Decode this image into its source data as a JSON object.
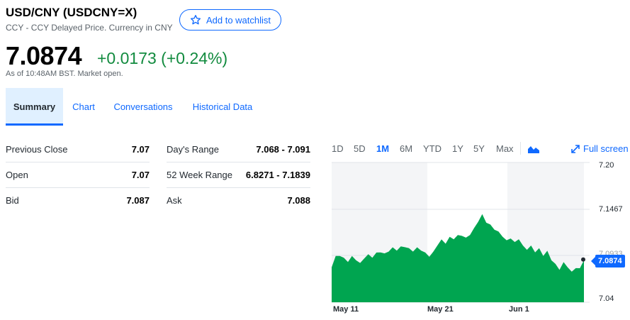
{
  "header": {
    "title": "USD/CNY (USDCNY=X)",
    "subtitle": "CCY - CCY Delayed Price. Currency in CNY",
    "watchlist_label": "Add to watchlist"
  },
  "quote": {
    "price": "7.0874",
    "change": "+0.0173 (+0.24%)",
    "as_of": "As of 10:48AM BST. Market open."
  },
  "tabs": [
    {
      "label": "Summary",
      "active": true
    },
    {
      "label": "Chart"
    },
    {
      "label": "Conversations"
    },
    {
      "label": "Historical Data"
    }
  ],
  "stats_left": [
    {
      "label": "Previous Close",
      "value": "7.07"
    },
    {
      "label": "Open",
      "value": "7.07"
    },
    {
      "label": "Bid",
      "value": "7.087"
    }
  ],
  "stats_right": [
    {
      "label": "Day's Range",
      "value": "7.068 - 7.091"
    },
    {
      "label": "52 Week Range",
      "value": "6.8271 - 7.1839"
    },
    {
      "label": "Ask",
      "value": "7.088"
    }
  ],
  "chart_controls": {
    "ranges": [
      "1D",
      "5D",
      "1M",
      "6M",
      "YTD",
      "1Y",
      "5Y",
      "Max"
    ],
    "active_range": "1M",
    "chart_type_icon": "mountain-chart-icon",
    "fullscreen_label": "Full screen"
  },
  "chart_data": {
    "type": "area",
    "color": "#00a550",
    "x_ticks": [
      "May 11",
      "May 21",
      "Jun 1"
    ],
    "y_ticks": [
      "7.20",
      "7.1467",
      "7.04"
    ],
    "y_hidden_tick": "7.0933",
    "ylim": [
      7.04,
      7.2
    ],
    "current_price": "7.0874",
    "values": [
      7.081,
      7.092,
      7.094,
      7.09,
      7.087,
      7.092,
      7.089,
      7.084,
      7.091,
      7.094,
      7.092,
      7.096,
      7.098,
      7.095,
      7.099,
      7.102,
      7.1,
      7.103,
      7.104,
      7.101,
      7.099,
      7.102,
      7.1,
      7.096,
      7.093,
      7.097,
      7.106,
      7.111,
      7.108,
      7.114,
      7.113,
      7.116,
      7.117,
      7.113,
      7.118,
      7.124,
      7.133,
      7.14,
      7.132,
      7.128,
      7.124,
      7.12,
      7.116,
      7.11,
      7.114,
      7.108,
      7.113,
      7.104,
      7.101,
      7.104,
      7.098,
      7.101,
      7.094,
      7.098,
      7.089,
      7.083,
      7.078,
      7.085,
      7.081,
      7.074,
      7.08,
      7.078,
      7.089
    ],
    "value_unit": "CNY per USD"
  }
}
